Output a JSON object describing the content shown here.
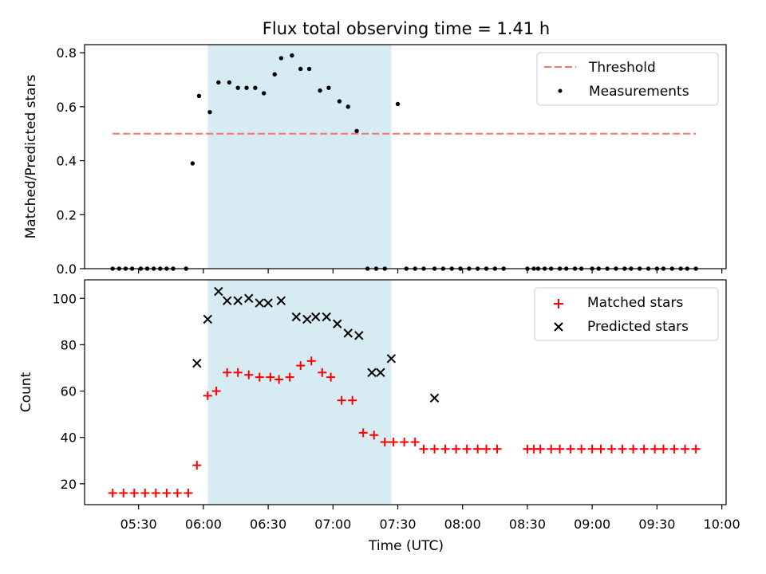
{
  "chart_data": [
    {
      "type": "scatter",
      "title": "Flux total observing time = 1.41 h",
      "xlabel": "",
      "ylabel": "Matched/Predicted stars",
      "ylim": [
        0,
        0.83
      ],
      "yticks": [
        "0.0",
        "0.2",
        "0.4",
        "0.6",
        "0.8"
      ],
      "ytick_values": [
        0,
        0.2,
        0.4,
        0.6,
        0.8
      ],
      "shaded_span": [
        "06:02",
        "07:27"
      ],
      "legend_position": "top-right",
      "colors": {
        "threshold": "#ff7070",
        "measurements": "#000000",
        "shade": "#add8e6"
      },
      "threshold": {
        "name": "Threshold",
        "value": 0.5,
        "x_range": [
          "05:18",
          "09:48"
        ]
      },
      "series": [
        {
          "name": "Measurements",
          "x": [
            "05:18",
            "05:21",
            "05:24",
            "05:27",
            "05:31",
            "05:34",
            "05:37",
            "05:40",
            "05:43",
            "05:46",
            "05:52",
            "05:55",
            "05:58",
            "06:03",
            "06:07",
            "06:12",
            "06:16",
            "06:20",
            "06:24",
            "06:28",
            "06:33",
            "06:36",
            "06:41",
            "06:45",
            "06:49",
            "06:54",
            "06:58",
            "07:03",
            "07:07",
            "07:11",
            "07:16",
            "07:20",
            "07:24",
            "07:30",
            "07:34",
            "07:38",
            "07:42",
            "07:47",
            "07:51",
            "07:55",
            "07:59",
            "08:03",
            "08:07",
            "08:11",
            "08:15",
            "08:19",
            "08:30",
            "08:33",
            "08:35",
            "08:38",
            "08:41",
            "08:45",
            "08:48",
            "08:52",
            "08:55",
            "09:00",
            "09:03",
            "09:07",
            "09:11",
            "09:15",
            "09:18",
            "09:22",
            "09:26",
            "09:30",
            "09:33",
            "09:37",
            "09:41",
            "09:44",
            "09:48"
          ],
          "y": [
            0,
            0,
            0,
            0,
            0,
            0,
            0,
            0,
            0,
            0,
            0,
            0.39,
            0.64,
            0.58,
            0.69,
            0.69,
            0.67,
            0.67,
            0.67,
            0.65,
            0.72,
            0.78,
            0.79,
            0.74,
            0.74,
            0.66,
            0.67,
            0.62,
            0.6,
            0.51,
            0,
            0,
            0,
            0.61,
            0,
            0,
            0,
            0,
            0,
            0,
            0,
            0,
            0,
            0,
            0,
            0,
            0,
            0,
            0,
            0,
            0,
            0,
            0,
            0,
            0,
            0,
            0,
            0,
            0,
            0,
            0,
            0,
            0,
            0,
            0,
            0,
            0,
            0,
            0
          ]
        }
      ]
    },
    {
      "type": "scatter",
      "title": "",
      "xlabel": "Time (UTC)",
      "ylabel": "Count",
      "ylim": [
        11,
        108
      ],
      "yticks": [
        "20",
        "40",
        "60",
        "80",
        "100"
      ],
      "ytick_values": [
        20,
        40,
        60,
        80,
        100
      ],
      "xticks": [
        "05:30",
        "06:00",
        "06:30",
        "07:00",
        "07:30",
        "08:00",
        "08:30",
        "09:00",
        "09:30",
        "10:00"
      ],
      "xtick_values": [
        "05:30",
        "06:00",
        "06:30",
        "07:00",
        "07:30",
        "08:00",
        "08:30",
        "09:00",
        "09:30",
        "10:00"
      ],
      "xlim": [
        "05:05",
        "10:02"
      ],
      "shaded_span": [
        "06:02",
        "07:27"
      ],
      "legend_position": "top-right",
      "colors": {
        "matched": "#ff0000",
        "predicted": "#000000",
        "shade": "#add8e6"
      },
      "series": [
        {
          "name": "Matched stars",
          "marker": "+",
          "x": [
            "05:18",
            "05:23",
            "05:28",
            "05:33",
            "05:38",
            "05:43",
            "05:48",
            "05:53",
            "05:57",
            "06:02",
            "06:06",
            "06:11",
            "06:16",
            "06:21",
            "06:26",
            "06:31",
            "06:35",
            "06:40",
            "06:45",
            "06:50",
            "06:55",
            "06:59",
            "07:04",
            "07:09",
            "07:14",
            "07:19",
            "07:24",
            "07:28",
            "07:33",
            "07:38",
            "07:42",
            "07:47",
            "07:52",
            "07:57",
            "08:02",
            "08:07",
            "08:11",
            "08:16",
            "08:30",
            "08:33",
            "08:36",
            "08:41",
            "08:45",
            "08:50",
            "08:55",
            "09:00",
            "09:04",
            "09:09",
            "09:14",
            "09:19",
            "09:24",
            "09:29",
            "09:33",
            "09:38",
            "09:43",
            "09:48"
          ],
          "y": [
            16,
            16,
            16,
            16,
            16,
            16,
            16,
            16,
            28,
            58,
            60,
            68,
            68,
            67,
            66,
            66,
            65,
            66,
            71,
            73,
            68,
            66,
            56,
            56,
            42,
            41,
            38,
            38,
            38,
            38,
            35,
            35,
            35,
            35,
            35,
            35,
            35,
            35,
            35,
            35,
            35,
            35,
            35,
            35,
            35,
            35,
            35,
            35,
            35,
            35,
            35,
            35,
            35,
            35,
            35,
            35
          ]
        },
        {
          "name": "Predicted stars",
          "marker": "x",
          "x": [
            "05:57",
            "06:02",
            "06:07",
            "06:11",
            "06:16",
            "06:21",
            "06:26",
            "06:30",
            "06:36",
            "06:43",
            "06:48",
            "06:52",
            "06:57",
            "07:02",
            "07:07",
            "07:12",
            "07:18",
            "07:22",
            "07:27",
            "07:47"
          ],
          "y": [
            72,
            91,
            103,
            99,
            99,
            100,
            98,
            98,
            99,
            92,
            91,
            92,
            92,
            89,
            85,
            84,
            68,
            68,
            74,
            57
          ]
        }
      ]
    }
  ]
}
